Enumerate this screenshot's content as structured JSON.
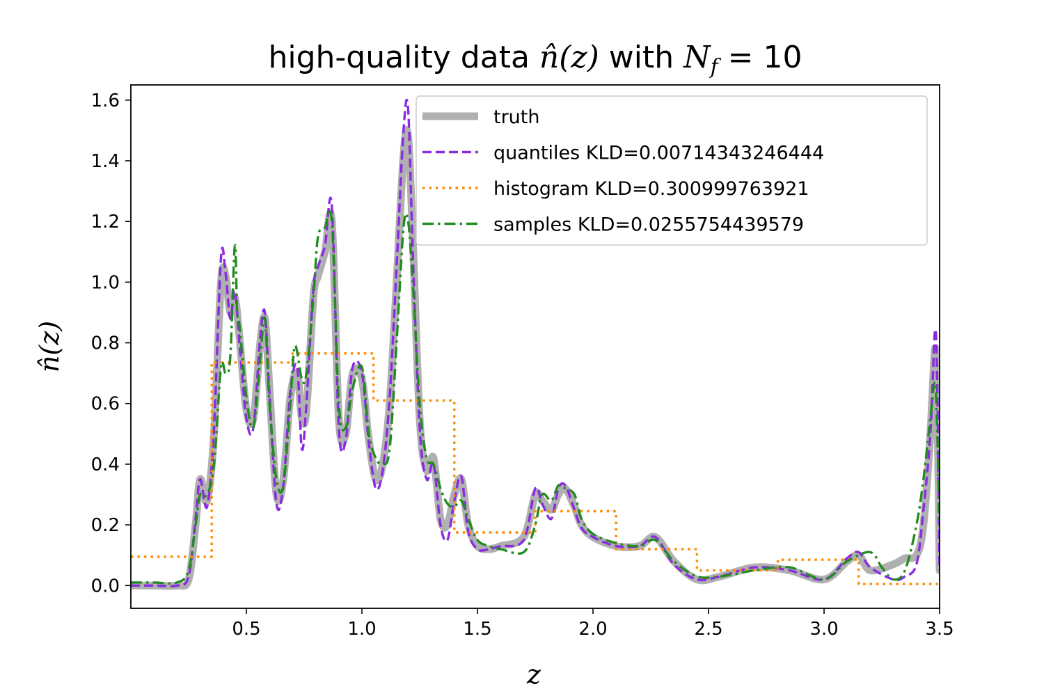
{
  "chart_data": {
    "type": "line",
    "title": {
      "main": "high-quality data ",
      "nz": "n̂(z)",
      "with": " with ",
      "nf_N": "N",
      "nf_sub": "f",
      "nf_rest": " = 10"
    },
    "xlabel": "z",
    "ylabel": "n̂(z)",
    "xlim": [
      0.0,
      3.5
    ],
    "ylim": [
      -0.075,
      1.65
    ],
    "xticks": [
      0.5,
      1.0,
      1.5,
      2.0,
      2.5,
      3.0,
      3.5
    ],
    "xtick_labels": [
      "0.5",
      "1.0",
      "1.5",
      "2.0",
      "2.5",
      "3.0",
      "3.5"
    ],
    "yticks": [
      0.0,
      0.2,
      0.4,
      0.6,
      0.8,
      1.0,
      1.2,
      1.4,
      1.6
    ],
    "ytick_labels": [
      "0.0",
      "0.2",
      "0.4",
      "0.6",
      "0.8",
      "1.0",
      "1.2",
      "1.4",
      "1.6"
    ],
    "grid": false,
    "legend_position": "top-right",
    "series": [
      {
        "name": "truth",
        "color": "#b0b0b0",
        "style": "solid",
        "x": [
          0.0,
          0.1,
          0.2,
          0.25,
          0.28,
          0.3,
          0.33,
          0.36,
          0.39,
          0.41,
          0.43,
          0.45,
          0.47,
          0.5,
          0.53,
          0.56,
          0.58,
          0.6,
          0.63,
          0.66,
          0.69,
          0.72,
          0.74,
          0.76,
          0.79,
          0.81,
          0.84,
          0.87,
          0.9,
          0.93,
          0.96,
          1.0,
          1.03,
          1.06,
          1.09,
          1.12,
          1.15,
          1.18,
          1.2,
          1.22,
          1.25,
          1.28,
          1.31,
          1.34,
          1.37,
          1.4,
          1.43,
          1.46,
          1.5,
          1.55,
          1.6,
          1.7,
          1.75,
          1.78,
          1.82,
          1.85,
          1.88,
          1.92,
          1.95,
          2.0,
          2.1,
          2.2,
          2.27,
          2.35,
          2.45,
          2.55,
          2.7,
          2.85,
          3.0,
          3.1,
          3.15,
          3.2,
          3.3,
          3.35,
          3.4,
          3.43,
          3.46,
          3.48,
          3.49,
          3.5
        ],
        "y": [
          0.0,
          0.0,
          0.0,
          0.02,
          0.2,
          0.35,
          0.28,
          0.5,
          1.0,
          1.02,
          0.9,
          0.95,
          0.82,
          0.58,
          0.55,
          0.8,
          0.88,
          0.65,
          0.3,
          0.35,
          0.62,
          0.7,
          0.55,
          0.58,
          0.95,
          1.02,
          1.1,
          1.2,
          0.55,
          0.5,
          0.7,
          0.68,
          0.48,
          0.35,
          0.4,
          0.6,
          1.0,
          1.42,
          1.48,
          1.15,
          0.55,
          0.38,
          0.42,
          0.22,
          0.2,
          0.3,
          0.35,
          0.2,
          0.13,
          0.12,
          0.13,
          0.16,
          0.3,
          0.28,
          0.25,
          0.3,
          0.32,
          0.26,
          0.2,
          0.16,
          0.13,
          0.13,
          0.16,
          0.08,
          0.02,
          0.03,
          0.06,
          0.05,
          0.02,
          0.08,
          0.1,
          0.05,
          0.07,
          0.09,
          0.1,
          0.2,
          0.5,
          0.78,
          0.6,
          0.05
        ]
      },
      {
        "name": "quantiles KLD=0.00714343246444",
        "color": "#8a2be2",
        "style": "dashed",
        "x": [
          0.0,
          0.1,
          0.2,
          0.25,
          0.28,
          0.3,
          0.33,
          0.36,
          0.39,
          0.41,
          0.43,
          0.45,
          0.47,
          0.5,
          0.53,
          0.56,
          0.58,
          0.6,
          0.63,
          0.66,
          0.69,
          0.72,
          0.74,
          0.76,
          0.79,
          0.81,
          0.84,
          0.87,
          0.9,
          0.93,
          0.96,
          1.0,
          1.03,
          1.06,
          1.09,
          1.12,
          1.15,
          1.18,
          1.2,
          1.22,
          1.25,
          1.28,
          1.31,
          1.34,
          1.37,
          1.4,
          1.43,
          1.46,
          1.5,
          1.55,
          1.6,
          1.7,
          1.75,
          1.78,
          1.82,
          1.85,
          1.88,
          1.92,
          1.95,
          2.0,
          2.1,
          2.2,
          2.27,
          2.35,
          2.45,
          2.55,
          2.7,
          2.85,
          3.0,
          3.1,
          3.15,
          3.2,
          3.3,
          3.35,
          3.4,
          3.43,
          3.46,
          3.48,
          3.49,
          3.5
        ],
        "y": [
          0.0,
          0.0,
          0.0,
          0.03,
          0.22,
          0.35,
          0.26,
          0.52,
          1.08,
          1.03,
          0.88,
          0.97,
          0.8,
          0.55,
          0.52,
          0.82,
          0.9,
          0.63,
          0.27,
          0.33,
          0.64,
          0.72,
          0.45,
          0.6,
          0.98,
          1.05,
          1.12,
          1.25,
          0.52,
          0.48,
          0.72,
          0.7,
          0.47,
          0.32,
          0.38,
          0.62,
          1.05,
          1.5,
          1.57,
          1.1,
          0.52,
          0.35,
          0.4,
          0.2,
          0.15,
          0.28,
          0.36,
          0.18,
          0.12,
          0.12,
          0.13,
          0.15,
          0.32,
          0.27,
          0.22,
          0.32,
          0.33,
          0.25,
          0.19,
          0.16,
          0.13,
          0.13,
          0.16,
          0.07,
          0.02,
          0.03,
          0.06,
          0.05,
          0.02,
          0.09,
          0.11,
          0.06,
          0.02,
          0.03,
          0.07,
          0.25,
          0.5,
          0.84,
          0.65,
          0.05
        ]
      },
      {
        "name": "histogram KLD=0.300999763921",
        "color": "#ff8c00",
        "style": "dotted",
        "x": [
          0.0,
          0.35,
          0.35,
          0.7,
          0.7,
          1.05,
          1.05,
          1.4,
          1.4,
          1.75,
          1.75,
          2.1,
          2.1,
          2.45,
          2.45,
          2.8,
          2.8,
          3.15,
          3.15,
          3.5
        ],
        "y": [
          0.095,
          0.095,
          0.735,
          0.735,
          0.765,
          0.765,
          0.61,
          0.61,
          0.175,
          0.175,
          0.245,
          0.245,
          0.12,
          0.12,
          0.05,
          0.05,
          0.085,
          0.085,
          0.005,
          0.005
        ]
      },
      {
        "name": "samples KLD=0.0255754439579",
        "color": "#228b22",
        "style": "dashdot",
        "x": [
          0.0,
          0.1,
          0.2,
          0.25,
          0.28,
          0.3,
          0.33,
          0.36,
          0.39,
          0.41,
          0.43,
          0.45,
          0.46,
          0.47,
          0.5,
          0.53,
          0.56,
          0.58,
          0.6,
          0.63,
          0.66,
          0.69,
          0.71,
          0.74,
          0.76,
          0.79,
          0.81,
          0.84,
          0.87,
          0.9,
          0.93,
          0.96,
          1.0,
          1.03,
          1.06,
          1.09,
          1.12,
          1.15,
          1.18,
          1.2,
          1.22,
          1.25,
          1.28,
          1.31,
          1.34,
          1.37,
          1.4,
          1.43,
          1.46,
          1.5,
          1.55,
          1.6,
          1.7,
          1.75,
          1.78,
          1.82,
          1.85,
          1.88,
          1.92,
          1.95,
          2.0,
          2.1,
          2.2,
          2.27,
          2.35,
          2.45,
          2.55,
          2.7,
          2.85,
          3.0,
          3.1,
          3.2,
          3.25,
          3.3,
          3.35,
          3.4,
          3.43,
          3.46,
          3.48,
          3.49,
          3.5
        ],
        "y": [
          0.01,
          0.01,
          0.01,
          0.05,
          0.2,
          0.3,
          0.3,
          0.4,
          0.72,
          0.7,
          0.75,
          1.12,
          0.9,
          0.86,
          0.62,
          0.52,
          0.75,
          0.88,
          0.6,
          0.35,
          0.33,
          0.6,
          0.79,
          0.68,
          0.7,
          0.95,
          1.15,
          1.18,
          1.2,
          0.6,
          0.52,
          0.65,
          0.72,
          0.5,
          0.42,
          0.4,
          0.45,
          0.8,
          1.18,
          1.2,
          1.0,
          0.6,
          0.42,
          0.4,
          0.32,
          0.27,
          0.26,
          0.28,
          0.22,
          0.15,
          0.13,
          0.12,
          0.11,
          0.2,
          0.3,
          0.28,
          0.33,
          0.32,
          0.3,
          0.22,
          0.17,
          0.14,
          0.13,
          0.15,
          0.08,
          0.03,
          0.03,
          0.05,
          0.06,
          0.02,
          0.08,
          0.11,
          0.06,
          0.02,
          0.05,
          0.2,
          0.35,
          0.55,
          0.67,
          0.5,
          0.2
        ]
      }
    ]
  }
}
